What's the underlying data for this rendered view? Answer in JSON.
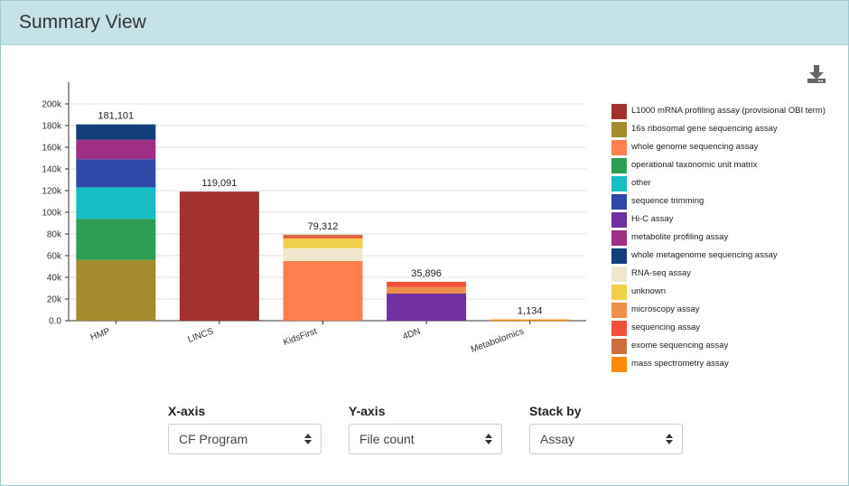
{
  "header": {
    "title": "Summary View"
  },
  "toolbar": {
    "download_icon": "download-icon"
  },
  "chart_data": {
    "type": "bar",
    "stacked": true,
    "title": "",
    "xlabel": "",
    "ylabel": "",
    "ylim": [
      0,
      200000
    ],
    "yticks": [
      "0.0",
      "20k",
      "40k",
      "60k",
      "80k",
      "100k",
      "120k",
      "140k",
      "160k",
      "180k",
      "200k"
    ],
    "grid": true,
    "legend_position": "right",
    "categories": [
      "HMP",
      "LINCS",
      "KidsFirst",
      "4DN",
      "Metabolomics"
    ],
    "totals": [
      "181,101",
      "119,091",
      "79,312",
      "35,896",
      "1,134"
    ],
    "series": [
      {
        "name": "L1000 mRNA profiling assay (provisional OBI term)",
        "color": "#a3322e",
        "values": [
          0,
          119091,
          0,
          0,
          0
        ]
      },
      {
        "name": "16s ribosomal gene sequencing assay",
        "color": "#a68b2e",
        "values": [
          56000,
          0,
          0,
          0,
          0
        ]
      },
      {
        "name": "whole genome sequencing assay",
        "color": "#ff7f50",
        "values": [
          0,
          0,
          55000,
          0,
          0
        ]
      },
      {
        "name": "operational taxonomic unit matrix",
        "color": "#2e9e55",
        "values": [
          38000,
          0,
          0,
          0,
          0
        ]
      },
      {
        "name": "other",
        "color": "#17bec4",
        "values": [
          29000,
          0,
          0,
          0,
          0
        ]
      },
      {
        "name": "sequence trimming",
        "color": "#2e49a8",
        "values": [
          26000,
          0,
          0,
          0,
          0
        ]
      },
      {
        "name": "Hi-C assay",
        "color": "#7030a0",
        "values": [
          0,
          0,
          0,
          25000,
          0
        ]
      },
      {
        "name": "metabolite profiling assay",
        "color": "#9e2f85",
        "values": [
          18000,
          0,
          0,
          0,
          0
        ]
      },
      {
        "name": "whole metagenome sequencing assay",
        "color": "#123f7a",
        "values": [
          14101,
          0,
          0,
          0,
          0
        ]
      },
      {
        "name": "RNA-seq assay",
        "color": "#eee6cd",
        "values": [
          0,
          0,
          12000,
          0,
          0
        ]
      },
      {
        "name": "unknown",
        "color": "#f2cf48",
        "values": [
          0,
          0,
          9000,
          0,
          0
        ]
      },
      {
        "name": "microscopy assay",
        "color": "#ee8f4b",
        "values": [
          0,
          0,
          0,
          6000,
          0
        ]
      },
      {
        "name": "sequencing assay",
        "color": "#f05138",
        "values": [
          0,
          0,
          1800,
          4896,
          0
        ]
      },
      {
        "name": "exome sequencing assay",
        "color": "#cc6e3e",
        "values": [
          0,
          0,
          1512,
          0,
          0
        ]
      },
      {
        "name": "mass spectrometry assay",
        "color": "#ff8c00",
        "values": [
          0,
          0,
          0,
          0,
          1134
        ]
      }
    ]
  },
  "controls": {
    "xaxis": {
      "label": "X-axis",
      "value": "CF Program"
    },
    "yaxis": {
      "label": "Y-axis",
      "value": "File count"
    },
    "stack": {
      "label": "Stack by",
      "value": "Assay"
    }
  }
}
